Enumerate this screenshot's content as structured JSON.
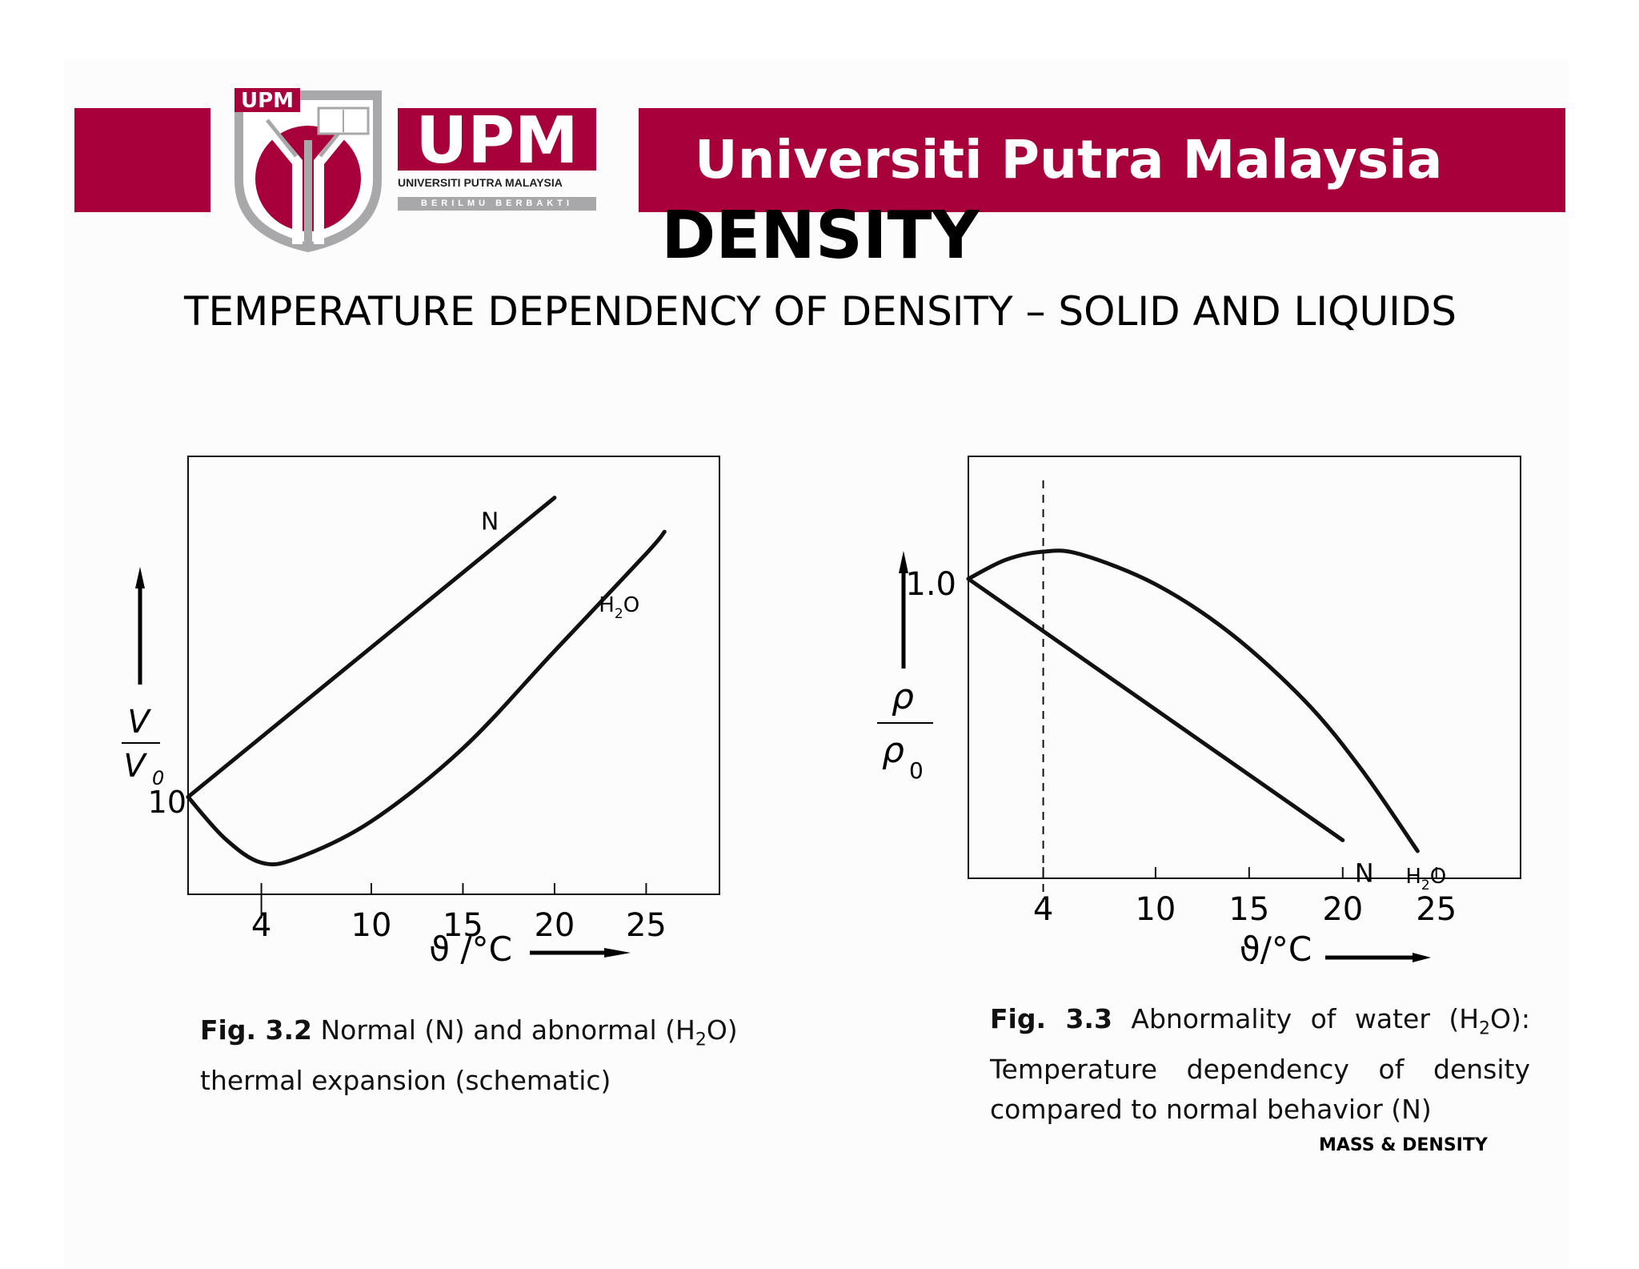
{
  "banner": {
    "university_name": "Universiti Putra Malaysia"
  },
  "logo": {
    "badge_text": "UPM",
    "wordmark": "UPM",
    "subtitle": "UNIVERSITI PUTRA MALAYSIA",
    "motto": "BERILMU BERBAKTI"
  },
  "colors": {
    "brand": "#a8003a",
    "badge_gray": "#a8a8aa"
  },
  "title": "DENSITY",
  "subtitle": "TEMPERATURE DEPENDENCY OF DENSITY – SOLID AND LIQUIDS",
  "chart_data": [
    {
      "type": "line",
      "ylabel_num": "V",
      "ylabel_den": "V",
      "ylabel_den_sub": "0",
      "y_tick_label": "10",
      "xlabel": "ϑ /°C",
      "x_ticks": [
        "4",
        "10",
        "15",
        "20",
        "25"
      ],
      "xlim": [
        0,
        29
      ],
      "ylim": [
        0.96,
        1.14
      ],
      "series": [
        {
          "name": "N",
          "x": [
            0,
            20
          ],
          "y": [
            1.0,
            1.123
          ]
        },
        {
          "name": "H",
          "name_sub": "2",
          "name_suffix": "O",
          "x": [
            0,
            2,
            4,
            6,
            10,
            15,
            20,
            25,
            26
          ],
          "y": [
            1.0,
            0.983,
            0.973,
            0.975,
            0.99,
            1.02,
            1.06,
            1.1,
            1.109
          ]
        }
      ],
      "vertical_marker_x": 4
    },
    {
      "type": "line",
      "ylabel_num": "ρ",
      "ylabel_den": "ρ",
      "ylabel_den_sub": "0",
      "y_tick_label": "1.0",
      "xlabel": "ϑ/°C",
      "x_ticks": [
        "4",
        "10",
        "15",
        "20",
        "25"
      ],
      "xlim": [
        0,
        29.5
      ],
      "ylim": [
        0.89,
        1.045
      ],
      "series": [
        {
          "name": "H",
          "name_sub": "2",
          "name_suffix": "O",
          "x": [
            0,
            2,
            4,
            6,
            10,
            14,
            18,
            21,
            24
          ],
          "y": [
            1.0,
            1.007,
            1.01,
            1.009,
            0.998,
            0.98,
            0.955,
            0.93,
            0.9
          ]
        },
        {
          "name": "N",
          "x": [
            0,
            20
          ],
          "y": [
            1.0,
            0.904
          ]
        }
      ],
      "dashed_marker_x": 4
    }
  ],
  "captions": {
    "fig32_label": "Fig. 3.2",
    "fig32_text_a": " Normal (N) and abnormal (H",
    "fig32_sub": "2",
    "fig32_text_b": "O) thermal expansion (schematic)",
    "fig33_label": "Fig. 3.3",
    "fig33_text_a": " Abnormality of water (H",
    "fig33_sub": "2",
    "fig33_text_b": "O): Temperature dependency of density compared to normal behavior (N)"
  },
  "footer": "MASS & DENSITY"
}
